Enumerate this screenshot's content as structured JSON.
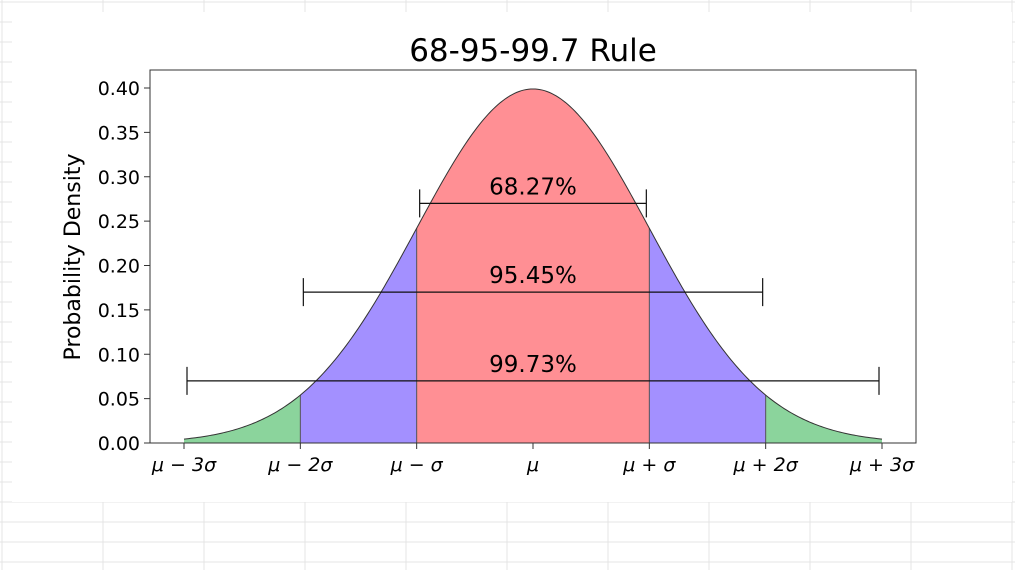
{
  "chart_data": {
    "type": "area",
    "title": "68-95-99.7 Rule",
    "xlabel": "",
    "ylabel": "Probability Density",
    "distribution": {
      "name": "normal",
      "mean": 0,
      "sd": 1
    },
    "xlim": [
      -3,
      3
    ],
    "ylim": [
      0,
      0.42
    ],
    "x_ticks": [
      {
        "value": -3,
        "label": "μ − 3σ"
      },
      {
        "value": -2,
        "label": "μ − 2σ"
      },
      {
        "value": -1,
        "label": "μ − σ"
      },
      {
        "value": 0,
        "label": "μ"
      },
      {
        "value": 1,
        "label": "μ + σ"
      },
      {
        "value": 2,
        "label": "μ + 2σ"
      },
      {
        "value": 3,
        "label": "μ + 3σ"
      }
    ],
    "y_ticks": [
      {
        "value": 0.0,
        "label": "0.00"
      },
      {
        "value": 0.05,
        "label": "0.05"
      },
      {
        "value": 0.1,
        "label": "0.10"
      },
      {
        "value": 0.15,
        "label": "0.15"
      },
      {
        "value": 0.2,
        "label": "0.20"
      },
      {
        "value": 0.25,
        "label": "0.25"
      },
      {
        "value": 0.3,
        "label": "0.30"
      },
      {
        "value": 0.35,
        "label": "0.35"
      },
      {
        "value": 0.4,
        "label": "0.40"
      }
    ],
    "regions": [
      {
        "from": -3,
        "to": -2,
        "color": "#8bd49c"
      },
      {
        "from": -2,
        "to": -1,
        "color": "#a390ff"
      },
      {
        "from": -1,
        "to": 1,
        "color": "#ff8f94"
      },
      {
        "from": 1,
        "to": 2,
        "color": "#a390ff"
      },
      {
        "from": 2,
        "to": 3,
        "color": "#8bd49c"
      }
    ],
    "intervals": [
      {
        "from": -1,
        "to": 1,
        "y": 0.27,
        "label": "68.27%"
      },
      {
        "from": -2,
        "to": 2,
        "y": 0.17,
        "label": "95.45%"
      },
      {
        "from": -3,
        "to": 3,
        "y": 0.07,
        "label": "99.73%"
      }
    ],
    "grid": false,
    "legend": "none"
  }
}
